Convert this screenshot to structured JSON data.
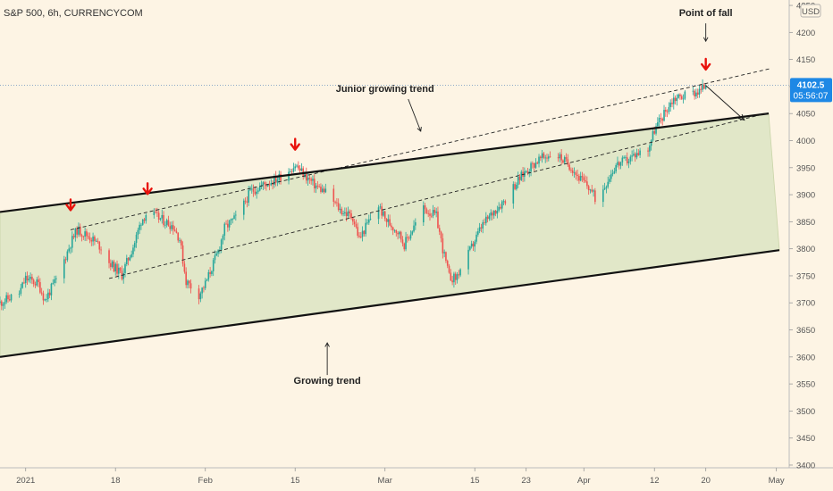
{
  "chart_data": {
    "type": "candlestick",
    "title": "S&P 500, 6h, CURRENCYCOM",
    "currency": "USD",
    "y_ticks": [
      3400,
      3450,
      3500,
      3550,
      3600,
      3650,
      3700,
      3750,
      3800,
      3850,
      3900,
      3950,
      4000,
      4050,
      4100,
      4150,
      4200,
      4250
    ],
    "ylim": [
      3395,
      4260
    ],
    "x_ticks": [
      {
        "label": "2021",
        "date": "2021-01-04"
      },
      {
        "label": "18",
        "date": "2021-01-18"
      },
      {
        "label": "Feb",
        "date": "2021-02-01"
      },
      {
        "label": "15",
        "date": "2021-02-15"
      },
      {
        "label": "Mar",
        "date": "2021-03-01"
      },
      {
        "label": "15",
        "date": "2021-03-15"
      },
      {
        "label": "23",
        "date": "2021-03-23"
      },
      {
        "label": "Apr",
        "date": "2021-04-01"
      },
      {
        "label": "12",
        "date": "2021-04-12"
      },
      {
        "label": "20",
        "date": "2021-04-20"
      },
      {
        "label": "May",
        "date": "2021-05-01"
      }
    ],
    "xlim": [
      "2020-12-31",
      "2021-05-03"
    ],
    "last_price": {
      "value": "4102.5",
      "countdown": "05:56:07"
    },
    "price_path": [
      {
        "date": "2020-12-31",
        "value": 3700
      },
      {
        "date": "2021-01-03",
        "value": 3718
      },
      {
        "date": "2021-01-04",
        "value": 3745
      },
      {
        "date": "2021-01-06",
        "value": 3735
      },
      {
        "date": "2021-01-07",
        "value": 3705
      },
      {
        "date": "2021-01-09",
        "value": 3748
      },
      {
        "date": "2021-01-11",
        "value": 3810
      },
      {
        "date": "2021-01-12",
        "value": 3835
      },
      {
        "date": "2021-01-14",
        "value": 3822
      },
      {
        "date": "2021-01-16",
        "value": 3800
      },
      {
        "date": "2021-01-17",
        "value": 3775
      },
      {
        "date": "2021-01-19",
        "value": 3752
      },
      {
        "date": "2021-01-21",
        "value": 3812
      },
      {
        "date": "2021-01-22",
        "value": 3852
      },
      {
        "date": "2021-01-23",
        "value": 3868
      },
      {
        "date": "2021-01-25",
        "value": 3855
      },
      {
        "date": "2021-01-27",
        "value": 3842
      },
      {
        "date": "2021-01-28",
        "value": 3818
      },
      {
        "date": "2021-01-29",
        "value": 3740
      },
      {
        "date": "2021-01-31",
        "value": 3715
      },
      {
        "date": "2021-02-01",
        "value": 3735
      },
      {
        "date": "2021-02-03",
        "value": 3795
      },
      {
        "date": "2021-02-04",
        "value": 3838
      },
      {
        "date": "2021-02-06",
        "value": 3860
      },
      {
        "date": "2021-02-08",
        "value": 3905
      },
      {
        "date": "2021-02-10",
        "value": 3918
      },
      {
        "date": "2021-02-12",
        "value": 3928
      },
      {
        "date": "2021-02-14",
        "value": 3945
      },
      {
        "date": "2021-02-15",
        "value": 3955
      },
      {
        "date": "2021-02-16",
        "value": 3942
      },
      {
        "date": "2021-02-18",
        "value": 3918
      },
      {
        "date": "2021-02-20",
        "value": 3902
      },
      {
        "date": "2021-02-22",
        "value": 3872
      },
      {
        "date": "2021-02-24",
        "value": 3858
      },
      {
        "date": "2021-02-25",
        "value": 3818
      },
      {
        "date": "2021-02-27",
        "value": 3862
      },
      {
        "date": "2021-02-28",
        "value": 3880
      },
      {
        "date": "2021-03-01",
        "value": 3855
      },
      {
        "date": "2021-03-03",
        "value": 3832
      },
      {
        "date": "2021-03-04",
        "value": 3808
      },
      {
        "date": "2021-03-06",
        "value": 3852
      },
      {
        "date": "2021-03-07",
        "value": 3875
      },
      {
        "date": "2021-03-09",
        "value": 3860
      },
      {
        "date": "2021-03-10",
        "value": 3800
      },
      {
        "date": "2021-03-11",
        "value": 3748
      },
      {
        "date": "2021-03-12",
        "value": 3745
      },
      {
        "date": "2021-03-14",
        "value": 3790
      },
      {
        "date": "2021-03-16",
        "value": 3840
      },
      {
        "date": "2021-03-18",
        "value": 3870
      },
      {
        "date": "2021-03-20",
        "value": 3895
      },
      {
        "date": "2021-03-21",
        "value": 3915
      },
      {
        "date": "2021-03-23",
        "value": 3945
      },
      {
        "date": "2021-03-25",
        "value": 3965
      },
      {
        "date": "2021-03-27",
        "value": 3975
      },
      {
        "date": "2021-03-28",
        "value": 3972
      },
      {
        "date": "2021-03-30",
        "value": 3952
      },
      {
        "date": "2021-03-31",
        "value": 3935
      },
      {
        "date": "2021-04-02",
        "value": 3910
      },
      {
        "date": "2021-04-03",
        "value": 3888
      },
      {
        "date": "2021-04-05",
        "value": 3935
      },
      {
        "date": "2021-04-06",
        "value": 3955
      },
      {
        "date": "2021-04-08",
        "value": 3965
      },
      {
        "date": "2021-04-09",
        "value": 3975
      },
      {
        "date": "2021-04-11",
        "value": 3985
      },
      {
        "date": "2021-04-12",
        "value": 4020
      },
      {
        "date": "2021-04-14",
        "value": 4060
      },
      {
        "date": "2021-04-15",
        "value": 4078
      },
      {
        "date": "2021-04-17",
        "value": 4085
      },
      {
        "date": "2021-04-19",
        "value": 4092
      },
      {
        "date": "2021-04-20",
        "value": 4102
      }
    ],
    "annotations": [
      {
        "text": "Point of fall",
        "date": "2021-04-20",
        "value": 4230
      },
      {
        "text": "Junior growing trend",
        "date": "2021-03-01",
        "value": 4090
      },
      {
        "text": "Growing trend",
        "date": "2021-02-20",
        "value": 3550
      }
    ],
    "trend_channel": {
      "upper": [
        {
          "date": "2020-12-31",
          "value": 3868
        },
        {
          "date": "2021-05-03",
          "value": 4055
        }
      ],
      "lower": [
        {
          "date": "2020-12-31",
          "value": 3600
        },
        {
          "date": "2021-05-03",
          "value": 3800
        }
      ],
      "fill_end": {
        "date": "2021-05-03",
        "upper": 4055,
        "lower": 3800
      }
    },
    "junior_channel": {
      "upper": [
        {
          "date": "2021-01-11",
          "value": 3835
        },
        {
          "date": "2021-04-30",
          "value": 4133
        }
      ],
      "lower": [
        {
          "date": "2021-01-17",
          "value": 3745
        },
        {
          "date": "2021-04-30",
          "value": 4052
        }
      ]
    },
    "peak_markers": [
      {
        "date": "2021-01-11",
        "value": 3868
      },
      {
        "date": "2021-01-23",
        "value": 3898
      },
      {
        "date": "2021-02-15",
        "value": 3980
      },
      {
        "date": "2021-04-20",
        "value": 4128
      }
    ],
    "projection": [
      {
        "date": "2021-04-20",
        "value": 4102
      },
      {
        "date": "2021-04-26",
        "value": 4038
      }
    ],
    "colors": {
      "background": "#fdf4e4",
      "channel_fill": "#dfe6c6",
      "up": "#26a69a",
      "down": "#ef5350",
      "marker": "#e8120c",
      "price_tag": "#1e88e5",
      "line": "#111111"
    }
  }
}
